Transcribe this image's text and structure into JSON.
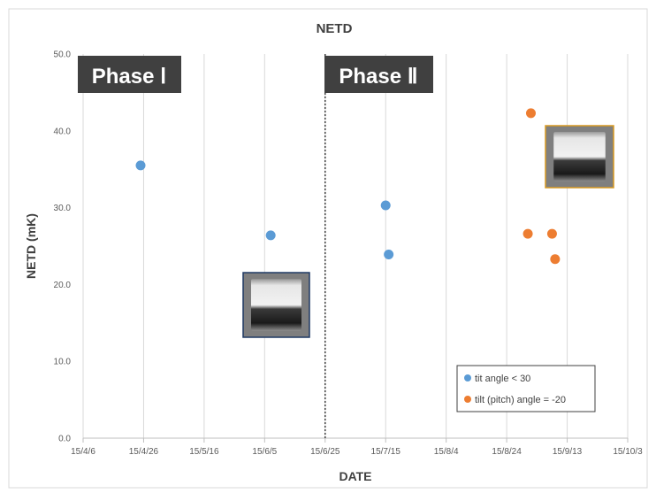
{
  "chart_data": {
    "type": "scatter",
    "title": "NETD",
    "xlabel": "DATE",
    "ylabel": "NETD (mK)",
    "xlim": [
      "2015-04-06",
      "2015-10-03"
    ],
    "ylim": [
      0,
      50
    ],
    "x_ticks": [
      "15/4/6",
      "15/4/26",
      "15/5/16",
      "15/6/5",
      "15/6/25",
      "15/7/15",
      "15/8/4",
      "15/8/24",
      "15/9/13",
      "15/10/3"
    ],
    "y_ticks": [
      "0.0",
      "10.0",
      "20.0",
      "30.0",
      "40.0",
      "50.0"
    ],
    "grid": "vertical",
    "legend_position": "bottom-right",
    "series": [
      {
        "name": "tit angle < 30",
        "color": "#5b9bd5",
        "points": [
          {
            "x": "2015-04-25",
            "y": 35.5
          },
          {
            "x": "2015-06-07",
            "y": 26.4
          },
          {
            "x": "2015-07-15",
            "y": 30.3
          },
          {
            "x": "2015-07-16",
            "y": 23.9
          }
        ]
      },
      {
        "name": "tilt (pitch) angle = -20",
        "color": "#ed7d31",
        "points": [
          {
            "x": "2015-09-01",
            "y": 42.3
          },
          {
            "x": "2015-08-31",
            "y": 26.6
          },
          {
            "x": "2015-09-08",
            "y": 26.6
          },
          {
            "x": "2015-09-09",
            "y": 23.3
          }
        ]
      }
    ],
    "annotations": {
      "phase_1": "Phase Ⅰ",
      "phase_2": "Phase Ⅱ",
      "divider_date": "2015-06-25"
    },
    "inset_images": [
      {
        "name": "phase-1-thermal-image",
        "border_color": "#1f3864"
      },
      {
        "name": "phase-2-thermal-image",
        "border_color": "#d99a22"
      }
    ]
  }
}
